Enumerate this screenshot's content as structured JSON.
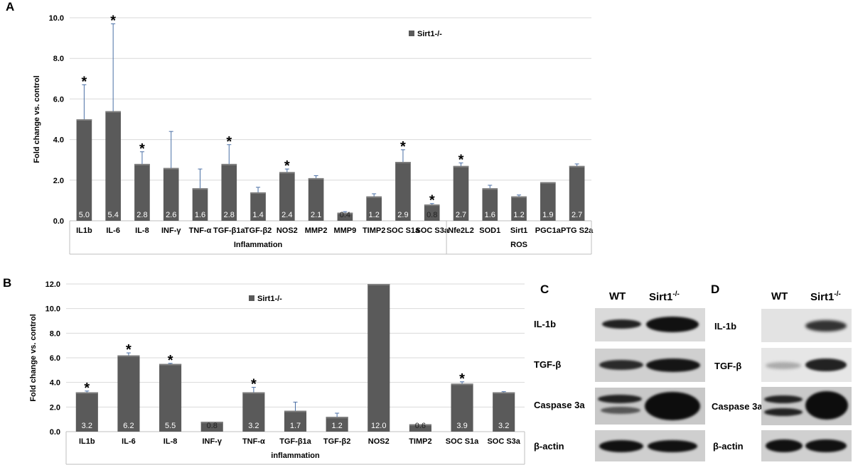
{
  "chart_data": [
    {
      "panel": "A",
      "type": "bar",
      "ylabel": "Fold  change vs. control",
      "ylim": [
        0,
        10
      ],
      "yticks": [
        "0.0",
        "2.0",
        "4.0",
        "6.0",
        "8.0",
        "10.0"
      ],
      "grid": true,
      "legend": "Sirt1-/-",
      "legend_position": "top-center",
      "categories": [
        "IL1b",
        "IL-6",
        "IL-8",
        "INF-γ",
        "TNF-α",
        "TGF-β1a",
        "TGF-β2",
        "NOS2",
        "MMP2",
        "MMP9",
        "TIMP2",
        "SOC S1a",
        "SOC S3a",
        "Nfe2L2",
        "SOD1",
        "Sirt1",
        "PGC1a",
        "PTG S2a"
      ],
      "groups": [
        {
          "name": "Inflammation",
          "count": 13
        },
        {
          "name": "ROS",
          "count": 5
        }
      ],
      "series": [
        {
          "name": "Sirt1-/-",
          "values": [
            5.0,
            5.4,
            2.8,
            2.6,
            1.6,
            2.8,
            1.4,
            2.4,
            2.1,
            0.4,
            1.2,
            2.9,
            0.8,
            2.7,
            1.6,
            1.2,
            1.9,
            2.7
          ],
          "labels": [
            "5.0",
            "5.4",
            "2.8",
            "2.6",
            "1.6",
            "2.8",
            "1.4",
            "2.4",
            "2.1",
            "0.4",
            "1.2",
            "2.9",
            "0.8",
            "2.7",
            "1.6",
            "1.2",
            "1.9",
            "2.7"
          ],
          "errors": [
            1.7,
            4.3,
            0.6,
            1.8,
            0.95,
            0.95,
            0.25,
            0.15,
            0.12,
            0.05,
            0.13,
            0.6,
            0.05,
            0.15,
            0.15,
            0.07,
            0.0,
            0.1
          ],
          "significant": [
            true,
            true,
            true,
            false,
            false,
            true,
            false,
            true,
            false,
            false,
            false,
            true,
            true,
            true,
            false,
            false,
            false,
            false
          ]
        }
      ],
      "significance_marker": "*"
    },
    {
      "panel": "B",
      "type": "bar",
      "ylabel": "Fold  change vs. control",
      "ylim": [
        0,
        12
      ],
      "yticks": [
        "0.0",
        "2.0",
        "4.0",
        "6.0",
        "8.0",
        "10.0",
        "12.0"
      ],
      "grid": true,
      "legend": "Sirt1-/-",
      "legend_position": "top-center",
      "categories": [
        "IL1b",
        "IL-6",
        "IL-8",
        "INF-γ",
        "TNF-α",
        "TGF-β1a",
        "TGF-β2",
        "NOS2",
        "TIMP2",
        "SOC S1a",
        "SOC S3a"
      ],
      "groups": [
        {
          "name": "inflammation",
          "count": 11
        }
      ],
      "series": [
        {
          "name": "Sirt1-/-",
          "values": [
            3.2,
            6.2,
            5.5,
            0.8,
            3.2,
            1.7,
            1.2,
            12.0,
            0.6,
            3.9,
            3.2
          ],
          "labels": [
            "3.2",
            "6.2",
            "5.5",
            "0.8",
            "3.2",
            "1.7",
            "1.2",
            "12.0",
            "0.6",
            "3.9",
            "3.2"
          ],
          "errors": [
            0.1,
            0.2,
            0.05,
            0.0,
            0.4,
            0.7,
            0.3,
            0.0,
            0.0,
            0.15,
            0.05
          ],
          "significant": [
            true,
            true,
            true,
            false,
            true,
            false,
            false,
            false,
            false,
            true,
            false
          ]
        }
      ],
      "significance_marker": "*"
    }
  ],
  "panel_letters": {
    "a": "A",
    "b": "B",
    "c": "C",
    "d": "D"
  },
  "blots": {
    "c": {
      "wt": "WT",
      "ko": "Sirt1",
      "ko_sup": "-/-",
      "rows": [
        "IL-1b",
        "TGF-β",
        "Caspase 3a",
        "β-actin"
      ]
    },
    "d": {
      "wt": "WT",
      "ko": "Sirt1",
      "ko_sup": "-/-",
      "rows": [
        "IL-1b",
        "TGF-β",
        "Caspase 3a",
        "β-actin"
      ]
    }
  },
  "colors": {
    "bar_fill": "#5a5a5a",
    "bar_top": "#7d7d7d",
    "error_bar": "#4a6fa5",
    "grid": "#d9d9d9",
    "axis": "#bfbfbf",
    "bar_label": "#ffffff",
    "blot_bg": "#d2d2d2",
    "band": "#1a1a1a"
  }
}
